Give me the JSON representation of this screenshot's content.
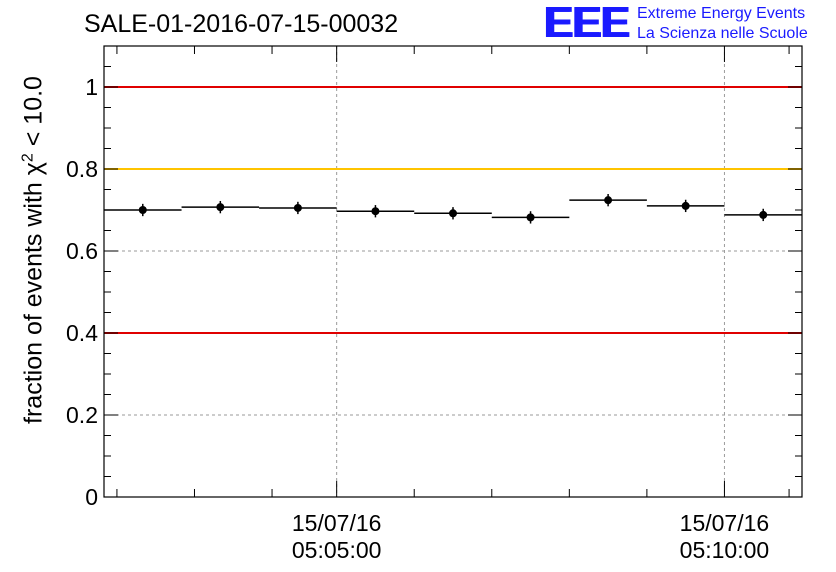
{
  "title": "SALE-01-2016-07-15-00032",
  "logo": {
    "mark": "EEE",
    "line1": "Extreme Energy Events",
    "line2": "La Scienza nelle Scuole",
    "color": "#1a1aff"
  },
  "chart_data": {
    "type": "scatter",
    "title": "SALE-01-2016-07-15-00032",
    "xlabel": "",
    "ylabel_prefix": "fraction of events with χ",
    "ylabel_sup": "2",
    "ylabel_suffix": " < 10.0",
    "x_unit": "minutes since 04:59:30",
    "xlim": [
      0,
      13.5
    ],
    "ylim": [
      0,
      1.1
    ],
    "yticks": [
      0,
      0.2,
      0.4,
      0.6,
      0.8,
      1
    ],
    "ytick_labels": [
      "0",
      "0.2",
      "0.4",
      "0.6",
      "0.8",
      "1"
    ],
    "xticks_major": [
      {
        "x": 4.5,
        "date": "15/07/16",
        "time": "05:05:00"
      },
      {
        "x": 12.0,
        "date": "15/07/16",
        "time": "05:10:00"
      }
    ],
    "xticks_minor": [
      0.25,
      1.75,
      3.25,
      6.0,
      7.5,
      9.0,
      10.5,
      13.25
    ],
    "grid": true,
    "series": [
      {
        "name": "fraction",
        "bins": [
          {
            "x0": 0.0,
            "x1": 1.5,
            "x": 0.75,
            "y": 0.7,
            "err": 0.015
          },
          {
            "x0": 1.5,
            "x1": 3.0,
            "x": 2.25,
            "y": 0.707,
            "err": 0.015
          },
          {
            "x0": 3.0,
            "x1": 4.5,
            "x": 3.75,
            "y": 0.705,
            "err": 0.015
          },
          {
            "x0": 4.5,
            "x1": 6.0,
            "x": 5.25,
            "y": 0.697,
            "err": 0.015
          },
          {
            "x0": 6.0,
            "x1": 7.5,
            "x": 6.75,
            "y": 0.692,
            "err": 0.015
          },
          {
            "x0": 7.5,
            "x1": 9.0,
            "x": 8.25,
            "y": 0.682,
            "err": 0.015
          },
          {
            "x0": 9.0,
            "x1": 10.5,
            "x": 9.75,
            "y": 0.724,
            "err": 0.015
          },
          {
            "x0": 10.5,
            "x1": 12.0,
            "x": 11.25,
            "y": 0.71,
            "err": 0.015
          },
          {
            "x0": 12.0,
            "x1": 13.5,
            "x": 12.75,
            "y": 0.688,
            "err": 0.015
          }
        ]
      }
    ],
    "reference_lines": [
      {
        "y": 1.0,
        "color": "#e00000"
      },
      {
        "y": 0.8,
        "color": "#ffc400"
      },
      {
        "y": 0.4,
        "color": "#e00000"
      }
    ]
  }
}
